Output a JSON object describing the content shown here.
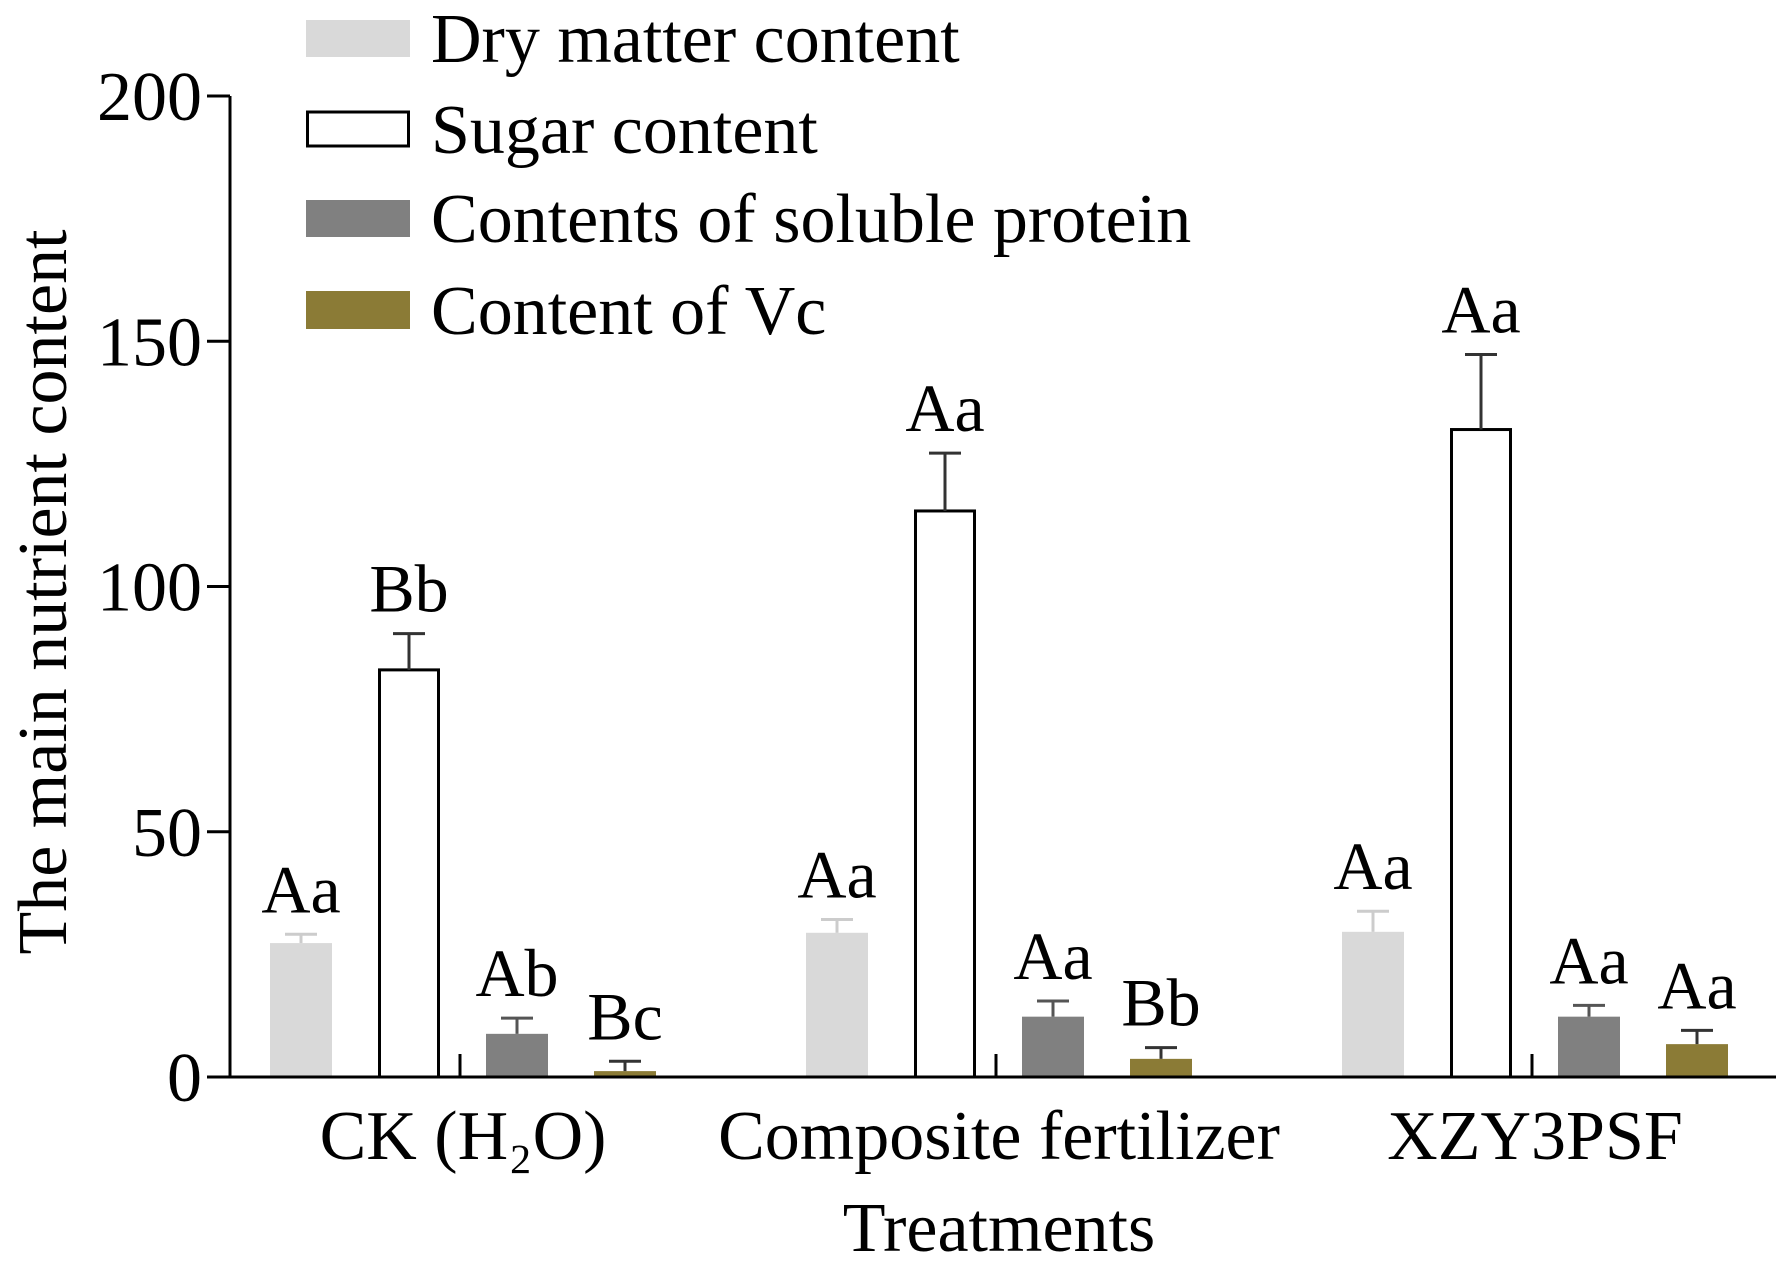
{
  "chart_data": {
    "type": "bar",
    "title": "",
    "xlabel": "Treatments",
    "ylabel": "The main nutrient content",
    "ylim": [
      0,
      200
    ],
    "yticks": [
      0,
      50,
      100,
      150,
      200
    ],
    "grid": false,
    "legend": "top-left",
    "categories": [
      "CK (H₂O)",
      "Composite fertilizer",
      "XZY3PSF"
    ],
    "series": [
      {
        "name": "Dry matter content",
        "color": "#d9d9d9",
        "stroke": "none",
        "error_color": "#cccccc",
        "values": [
          27.3,
          29.4,
          29.6
        ],
        "errors": [
          1.8,
          2.7,
          4.2
        ],
        "labels": [
          "Aa",
          "Aa",
          "Aa"
        ]
      },
      {
        "name": "Sugar content",
        "color": "#ffffff",
        "stroke": "#000000",
        "error_color": "#333333",
        "values": [
          83.0,
          115.4,
          132.0
        ],
        "errors": [
          7.4,
          11.8,
          15.3
        ],
        "labels": [
          "Bb",
          "Aa",
          "Aa"
        ]
      },
      {
        "name": "Contents of soluble protein",
        "color": "#808080",
        "stroke": "none",
        "error_color": "#555555",
        "values": [
          8.8,
          12.3,
          12.3
        ],
        "errors": [
          3.2,
          3.2,
          2.3
        ],
        "labels": [
          "Ab",
          "Aa",
          "Aa"
        ]
      },
      {
        "name": "Content of Vc",
        "color": "#8b7b36",
        "stroke": "none",
        "error_color": "#333333",
        "values": [
          1.2,
          3.7,
          6.7
        ],
        "errors": [
          2.0,
          2.3,
          2.8
        ],
        "labels": [
          "Bc",
          "Bb",
          "Aa"
        ]
      }
    ]
  }
}
